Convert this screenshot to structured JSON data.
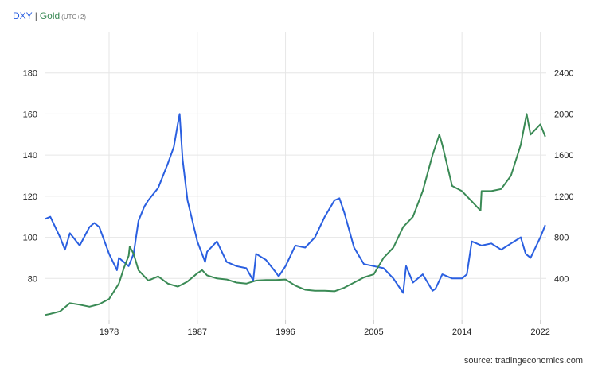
{
  "legend": {
    "series1": "DXY",
    "separator": "|",
    "series2": "Gold",
    "timezone": "(UTC+2)"
  },
  "source": "source: tradingeconomics.com",
  "colors": {
    "dxy": "#2a5fe0",
    "gold": "#3a8a55",
    "grid": "#e6e6e6",
    "axis": "#cccccc"
  },
  "chart_data": {
    "type": "line",
    "xlim": [
      1971.5,
      2022.6
    ],
    "x_ticks": [
      1978,
      1987,
      1996,
      2005,
      2014,
      2022
    ],
    "left_axis": {
      "ylim": [
        60,
        200
      ],
      "ticks": [
        80,
        100,
        120,
        140,
        160,
        180
      ]
    },
    "right_axis": {
      "ylim": [
        0,
        2800
      ],
      "ticks": [
        400,
        800,
        1200,
        1600,
        2000,
        2400
      ]
    },
    "grid": true,
    "series": [
      {
        "name": "DXY",
        "axis": "left",
        "x": [
          1971.5,
          1972,
          1973,
          1973.5,
          1974,
          1975,
          1976,
          1976.5,
          1977,
          1978,
          1978.8,
          1979,
          1980,
          1980.5,
          1981,
          1981.6,
          1982,
          1983,
          1984,
          1984.6,
          1985,
          1985.2,
          1985.5,
          1986,
          1987,
          1987.8,
          1988,
          1989,
          1990,
          1991,
          1992,
          1992.7,
          1993,
          1994,
          1995,
          1995.3,
          1996,
          1997,
          1998,
          1999,
          2000,
          2001,
          2001.5,
          2002,
          2003,
          2004,
          2005,
          2006,
          2007,
          2008,
          2008.3,
          2009,
          2010,
          2011,
          2011.3,
          2012,
          2013,
          2014,
          2014.5,
          2015,
          2016,
          2017,
          2018,
          2019,
          2020,
          2020.5,
          2021,
          2022,
          2022.5
        ],
        "y": [
          109,
          110,
          100,
          94,
          102,
          96,
          105,
          107,
          105,
          92,
          84,
          90,
          86,
          92,
          108,
          115,
          118,
          124,
          136,
          144,
          155,
          160,
          138,
          118,
          98,
          88,
          93,
          98,
          88,
          86,
          85,
          79,
          92,
          89,
          83,
          81,
          86,
          96,
          95,
          100,
          110,
          118,
          119,
          112,
          95,
          87,
          86,
          85,
          80,
          73,
          86,
          78,
          82,
          74,
          75,
          82,
          80,
          80,
          82,
          98,
          96,
          97,
          94,
          97,
          100,
          92,
          90,
          100,
          106
        ]
      },
      {
        "name": "Gold",
        "axis": "right",
        "x": [
          1971.5,
          1972,
          1973,
          1974,
          1975,
          1976,
          1977,
          1978,
          1979,
          1979.5,
          1980,
          1980.1,
          1980.5,
          1981,
          1982,
          1983,
          1984,
          1985,
          1986,
          1987,
          1987.5,
          1988,
          1989,
          1990,
          1991,
          1992,
          1993,
          1994,
          1995,
          1996,
          1997,
          1998,
          1999,
          2000,
          2001,
          2002,
          2003,
          2004,
          2005,
          2006,
          2007,
          2008,
          2009,
          2010,
          2011,
          2011.7,
          2012,
          2013,
          2014,
          2015,
          2015.9,
          2016,
          2017,
          2018,
          2019,
          2020,
          2020.6,
          2021,
          2022,
          2022.5
        ],
        "y": [
          45,
          55,
          80,
          160,
          145,
          125,
          150,
          200,
          350,
          500,
          620,
          710,
          640,
          480,
          380,
          420,
          350,
          320,
          370,
          450,
          480,
          430,
          400,
          390,
          360,
          350,
          380,
          385,
          385,
          390,
          330,
          290,
          280,
          280,
          275,
          310,
          360,
          410,
          440,
          600,
          700,
          900,
          1000,
          1250,
          1600,
          1800,
          1700,
          1300,
          1250,
          1150,
          1060,
          1250,
          1250,
          1270,
          1400,
          1700,
          2000,
          1800,
          1900,
          1780
        ]
      }
    ]
  }
}
